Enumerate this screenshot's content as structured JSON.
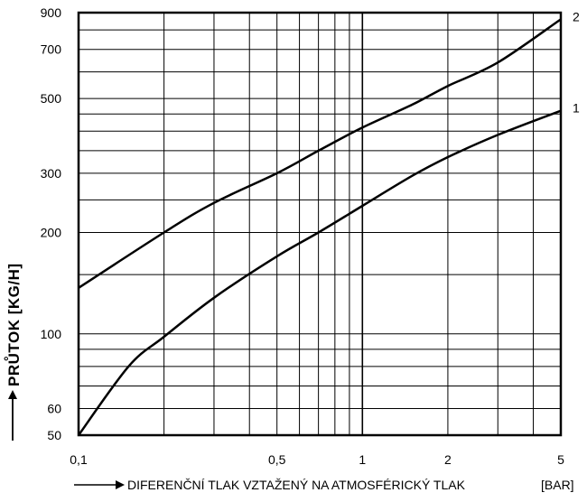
{
  "chart_data": {
    "type": "line",
    "title": "",
    "xlabel": "DIFERENČNÍ TLAK VZTAŽENÝ NA ATMOSFÉRICKÝ TLAK",
    "xlabel_unit": "[BAR]",
    "ylabel": "PRŮTOK [KG/H]",
    "xscale": "log",
    "yscale": "log",
    "xlim": [
      0.1,
      5
    ],
    "ylim": [
      50,
      900
    ],
    "grid": true,
    "x_tick_labels": [
      "0,1",
      "0,5",
      "1",
      "2",
      "5"
    ],
    "x_tick_values": [
      0.1,
      0.5,
      1,
      2,
      5
    ],
    "y_tick_labels": [
      "50",
      "60",
      "100",
      "200",
      "300",
      "500",
      "700",
      "900"
    ],
    "y_tick_values": [
      50,
      60,
      100,
      200,
      300,
      500,
      700,
      900
    ],
    "series": [
      {
        "name": "1",
        "x": [
          0.1,
          0.15,
          0.2,
          0.3,
          0.5,
          0.7,
          1,
          1.5,
          2,
          3,
          5
        ],
        "y": [
          50,
          80,
          98,
          128,
          170,
          200,
          240,
          295,
          335,
          390,
          460
        ]
      },
      {
        "name": "2",
        "x": [
          0.1,
          0.2,
          0.3,
          0.5,
          0.7,
          1,
          1.5,
          2,
          3,
          5
        ],
        "y": [
          137,
          200,
          245,
          300,
          350,
          410,
          480,
          545,
          640,
          860
        ]
      }
    ],
    "color": "#000000"
  }
}
